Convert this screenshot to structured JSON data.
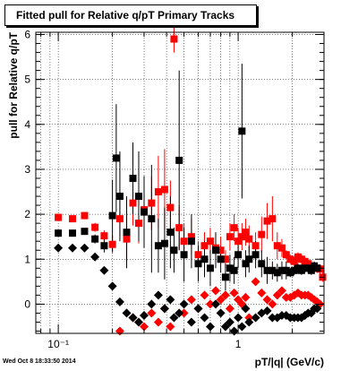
{
  "title": "Fitted pull for Relative q/pT  Primary Tracks",
  "timestamp": "Wed Oct  8 18:33:50 2014",
  "colors": {
    "series_red": "#ff0000",
    "series_black": "#000000"
  },
  "chart_data": {
    "type": "scatter",
    "title": "Fitted pull for Relative q/pT  Primary Tracks",
    "xlabel": "pT/|q| (GeV/c)",
    "ylabel": "pull for Relative q/pT",
    "xscale": "log",
    "xlim": [
      0.075,
      3.0
    ],
    "ylim": [
      -0.65,
      6.05
    ],
    "grid": true,
    "x_tick_labels": [
      {
        "value": 0.1,
        "label": "10⁻¹"
      },
      {
        "value": 1,
        "label": "1"
      }
    ],
    "y_ticks": [
      0,
      1,
      2,
      3,
      4,
      5,
      6
    ],
    "series": [
      {
        "marker": "square",
        "color": "#ff0000",
        "points": [
          {
            "x": 0.1,
            "y": 1.93,
            "err": 0.07
          },
          {
            "x": 0.12,
            "y": 1.9,
            "err": 0.07
          },
          {
            "x": 0.14,
            "y": 1.97,
            "err": 0.08
          },
          {
            "x": 0.16,
            "y": 1.71,
            "err": 0.1
          },
          {
            "x": 0.18,
            "y": 1.52,
            "err": 0.12
          },
          {
            "x": 0.2,
            "y": 1.33,
            "err": 0.2
          },
          {
            "x": 0.22,
            "y": 1.9,
            "err": 0.4
          },
          {
            "x": 0.24,
            "y": 1.45,
            "err": 0.5
          },
          {
            "x": 0.26,
            "y": 2.25,
            "err": 0.5
          },
          {
            "x": 0.28,
            "y": 1.8,
            "err": 0.45
          },
          {
            "x": 0.3,
            "y": 2.1,
            "err": 0.5
          },
          {
            "x": 0.33,
            "y": 2.25,
            "err": 0.6
          },
          {
            "x": 0.36,
            "y": 2.5,
            "err": 0.8
          },
          {
            "x": 0.39,
            "y": 2.55,
            "err": 0.9
          },
          {
            "x": 0.42,
            "y": 2.15,
            "err": 0.6
          },
          {
            "x": 0.44,
            "y": 5.9,
            "err": 0.3
          },
          {
            "x": 0.47,
            "y": 1.7,
            "err": 0.5
          },
          {
            "x": 0.5,
            "y": 1.4,
            "err": 0.4
          },
          {
            "x": 0.55,
            "y": 1.5,
            "err": 0.4
          },
          {
            "x": 0.6,
            "y": 1.1,
            "err": 0.3
          },
          {
            "x": 0.65,
            "y": 1.3,
            "err": 0.3
          },
          {
            "x": 0.7,
            "y": 1.4,
            "err": 0.3
          },
          {
            "x": 0.75,
            "y": 1.25,
            "err": 0.3
          },
          {
            "x": 0.8,
            "y": 1.2,
            "err": 0.3
          },
          {
            "x": 0.85,
            "y": 1.0,
            "err": 0.2
          },
          {
            "x": 0.9,
            "y": 1.5,
            "err": 0.3
          },
          {
            "x": 0.95,
            "y": 1.7,
            "err": 0.3
          },
          {
            "x": 1.0,
            "y": 1.4,
            "err": 0.3
          },
          {
            "x": 1.05,
            "y": 1.5,
            "err": 0.3
          },
          {
            "x": 1.1,
            "y": 1.6,
            "err": 0.3
          },
          {
            "x": 1.15,
            "y": 1.45,
            "err": 0.3
          },
          {
            "x": 1.25,
            "y": 1.3,
            "err": 0.3
          },
          {
            "x": 1.35,
            "y": 1.55,
            "err": 0.4
          },
          {
            "x": 1.45,
            "y": 1.85,
            "err": 0.4
          },
          {
            "x": 1.55,
            "y": 1.9,
            "err": 0.5
          },
          {
            "x": 1.65,
            "y": 1.3,
            "err": 0.3
          },
          {
            "x": 1.75,
            "y": 1.25,
            "err": 0.2
          },
          {
            "x": 1.85,
            "y": 1.1,
            "err": 0.1
          },
          {
            "x": 1.95,
            "y": 1.0,
            "err": 0.1
          },
          {
            "x": 2.05,
            "y": 0.95,
            "err": 0.1
          },
          {
            "x": 2.15,
            "y": 1.05,
            "err": 0.1
          },
          {
            "x": 2.25,
            "y": 1.0,
            "err": 0.1
          },
          {
            "x": 2.35,
            "y": 0.95,
            "err": 0.1
          },
          {
            "x": 2.45,
            "y": 0.9,
            "err": 0.1
          },
          {
            "x": 2.55,
            "y": 0.85,
            "err": 0.1
          },
          {
            "x": 2.65,
            "y": 0.8,
            "err": 0.1
          },
          {
            "x": 2.75,
            "y": 0.8,
            "err": 0.1
          },
          {
            "x": 2.85,
            "y": 0.78,
            "err": 0.1
          },
          {
            "x": 2.95,
            "y": 0.6,
            "err": 0.1
          }
        ]
      },
      {
        "marker": "square",
        "color": "#000000",
        "points": [
          {
            "x": 0.1,
            "y": 1.58,
            "err": 0.06
          },
          {
            "x": 0.12,
            "y": 1.58,
            "err": 0.06
          },
          {
            "x": 0.14,
            "y": 1.62,
            "err": 0.07
          },
          {
            "x": 0.16,
            "y": 1.45,
            "err": 0.1
          },
          {
            "x": 0.18,
            "y": 1.3,
            "err": 0.15
          },
          {
            "x": 0.2,
            "y": 1.97,
            "err": 0.8
          },
          {
            "x": 0.21,
            "y": 3.25,
            "err": 1.2
          },
          {
            "x": 0.22,
            "y": 2.4,
            "err": 1.0
          },
          {
            "x": 0.24,
            "y": 1.6,
            "err": 0.8
          },
          {
            "x": 0.26,
            "y": 2.8,
            "err": 0.8
          },
          {
            "x": 0.28,
            "y": 2.4,
            "err": 1.0
          },
          {
            "x": 0.3,
            "y": 2.05,
            "err": 0.8
          },
          {
            "x": 0.33,
            "y": 1.9,
            "err": 1.2
          },
          {
            "x": 0.36,
            "y": 1.3,
            "err": 0.6
          },
          {
            "x": 0.39,
            "y": 1.35,
            "err": 0.8
          },
          {
            "x": 0.42,
            "y": 1.6,
            "err": 0.8
          },
          {
            "x": 0.44,
            "y": 1.2,
            "err": 0.5
          },
          {
            "x": 0.47,
            "y": 3.2,
            "err": 2.0
          },
          {
            "x": 0.5,
            "y": 1.1,
            "err": 0.6
          },
          {
            "x": 0.55,
            "y": 1.4,
            "err": 0.6
          },
          {
            "x": 0.6,
            "y": 0.9,
            "err": 0.4
          },
          {
            "x": 0.65,
            "y": 1.0,
            "err": 0.4
          },
          {
            "x": 0.7,
            "y": 0.8,
            "err": 0.4
          },
          {
            "x": 0.75,
            "y": 1.2,
            "err": 0.4
          },
          {
            "x": 0.8,
            "y": 1.0,
            "err": 0.3
          },
          {
            "x": 0.85,
            "y": 0.6,
            "err": 0.3
          },
          {
            "x": 0.9,
            "y": 0.8,
            "err": 0.3
          },
          {
            "x": 0.95,
            "y": 0.75,
            "err": 0.3
          },
          {
            "x": 1.0,
            "y": 1.1,
            "err": 0.3
          },
          {
            "x": 1.05,
            "y": 3.85,
            "err": 1.5
          },
          {
            "x": 1.1,
            "y": 0.9,
            "err": 0.3
          },
          {
            "x": 1.15,
            "y": 1.0,
            "err": 0.3
          },
          {
            "x": 1.25,
            "y": 1.1,
            "err": 0.3
          },
          {
            "x": 1.35,
            "y": 0.9,
            "err": 0.3
          },
          {
            "x": 1.45,
            "y": 0.75,
            "err": 0.3
          },
          {
            "x": 1.55,
            "y": 0.75,
            "err": 0.2
          },
          {
            "x": 1.65,
            "y": 0.7,
            "err": 0.2
          },
          {
            "x": 1.75,
            "y": 0.75,
            "err": 0.2
          },
          {
            "x": 1.85,
            "y": 0.75,
            "err": 0.2
          },
          {
            "x": 1.95,
            "y": 0.7,
            "err": 0.1
          },
          {
            "x": 2.05,
            "y": 0.75,
            "err": 0.1
          },
          {
            "x": 2.15,
            "y": 0.8,
            "err": 0.1
          },
          {
            "x": 2.25,
            "y": 0.75,
            "err": 0.1
          },
          {
            "x": 2.35,
            "y": 0.8,
            "err": 0.1
          },
          {
            "x": 2.45,
            "y": 0.8,
            "err": 0.1
          },
          {
            "x": 2.55,
            "y": 0.75,
            "err": 0.1
          },
          {
            "x": 2.65,
            "y": 0.85,
            "err": 0.1
          },
          {
            "x": 2.75,
            "y": 0.8,
            "err": 0.1
          }
        ]
      },
      {
        "marker": "diamond",
        "color": "#ff0000",
        "points": [
          {
            "x": 0.22,
            "y": -0.6
          },
          {
            "x": 0.26,
            "y": -0.3
          },
          {
            "x": 0.3,
            "y": -0.5
          },
          {
            "x": 0.33,
            "y": -0.2
          },
          {
            "x": 0.36,
            "y": -0.4
          },
          {
            "x": 0.39,
            "y": -0.1
          },
          {
            "x": 0.42,
            "y": -0.5
          },
          {
            "x": 0.5,
            "y": -0.2
          },
          {
            "x": 0.55,
            "y": 0.1
          },
          {
            "x": 0.6,
            "y": -0.1
          },
          {
            "x": 0.65,
            "y": 0.2
          },
          {
            "x": 0.7,
            "y": 0.0
          },
          {
            "x": 0.75,
            "y": 0.3
          },
          {
            "x": 0.8,
            "y": 0.1
          },
          {
            "x": 0.85,
            "y": 0.2
          },
          {
            "x": 0.9,
            "y": -0.1
          },
          {
            "x": 0.95,
            "y": 0.25
          },
          {
            "x": 1.0,
            "y": 0.1
          },
          {
            "x": 1.05,
            "y": 0.0
          },
          {
            "x": 1.1,
            "y": 0.15
          },
          {
            "x": 1.15,
            "y": -0.3
          },
          {
            "x": 1.25,
            "y": 0.5
          },
          {
            "x": 1.35,
            "y": 0.25
          },
          {
            "x": 1.45,
            "y": 0.1
          },
          {
            "x": 1.55,
            "y": 0.0
          },
          {
            "x": 1.65,
            "y": 0.2
          },
          {
            "x": 1.75,
            "y": 0.3
          },
          {
            "x": 1.85,
            "y": 0.15
          },
          {
            "x": 1.95,
            "y": 0.15
          },
          {
            "x": 2.05,
            "y": 0.2
          },
          {
            "x": 2.15,
            "y": 0.25
          },
          {
            "x": 2.25,
            "y": 0.2
          },
          {
            "x": 2.35,
            "y": 0.2
          },
          {
            "x": 2.45,
            "y": 0.2
          },
          {
            "x": 2.55,
            "y": 0.15
          },
          {
            "x": 2.65,
            "y": 0.1
          },
          {
            "x": 2.75,
            "y": 0.05
          },
          {
            "x": 2.85,
            "y": 0.0
          }
        ]
      },
      {
        "marker": "diamond",
        "color": "#000000",
        "points": [
          {
            "x": 0.1,
            "y": 1.25
          },
          {
            "x": 0.12,
            "y": 1.25
          },
          {
            "x": 0.14,
            "y": 1.25
          },
          {
            "x": 0.16,
            "y": 1.05
          },
          {
            "x": 0.18,
            "y": 0.75
          },
          {
            "x": 0.2,
            "y": 0.4
          },
          {
            "x": 0.22,
            "y": 0.05
          },
          {
            "x": 0.24,
            "y": -0.2
          },
          {
            "x": 0.26,
            "y": -0.3
          },
          {
            "x": 0.28,
            "y": -0.4
          },
          {
            "x": 0.3,
            "y": -0.25
          },
          {
            "x": 0.33,
            "y": 0.0
          },
          {
            "x": 0.36,
            "y": 0.2
          },
          {
            "x": 0.39,
            "y": -0.1
          },
          {
            "x": 0.42,
            "y": 0.1
          },
          {
            "x": 0.44,
            "y": -0.3
          },
          {
            "x": 0.47,
            "y": -0.2
          },
          {
            "x": 0.5,
            "y": 0.0
          },
          {
            "x": 0.55,
            "y": -0.4
          },
          {
            "x": 0.6,
            "y": -0.1
          },
          {
            "x": 0.65,
            "y": -0.3
          },
          {
            "x": 0.7,
            "y": -0.5
          },
          {
            "x": 0.75,
            "y": 0.0
          },
          {
            "x": 0.8,
            "y": -0.2
          },
          {
            "x": 0.85,
            "y": -0.5
          },
          {
            "x": 0.9,
            "y": -0.4
          },
          {
            "x": 0.95,
            "y": -0.6
          },
          {
            "x": 1.0,
            "y": -0.3
          },
          {
            "x": 1.05,
            "y": -0.5
          },
          {
            "x": 1.1,
            "y": -0.1
          },
          {
            "x": 1.15,
            "y": -0.4
          },
          {
            "x": 1.25,
            "y": -0.3
          },
          {
            "x": 1.35,
            "y": -0.2
          },
          {
            "x": 1.45,
            "y": -0.15
          },
          {
            "x": 1.55,
            "y": -0.3
          },
          {
            "x": 1.65,
            "y": -0.3
          },
          {
            "x": 1.75,
            "y": -0.25
          },
          {
            "x": 1.85,
            "y": -0.25
          },
          {
            "x": 1.95,
            "y": -0.3
          },
          {
            "x": 2.05,
            "y": -0.3
          },
          {
            "x": 2.15,
            "y": -0.3
          },
          {
            "x": 2.25,
            "y": -0.3
          },
          {
            "x": 2.35,
            "y": -0.25
          },
          {
            "x": 2.45,
            "y": -0.2
          },
          {
            "x": 2.55,
            "y": -0.2
          },
          {
            "x": 2.65,
            "y": -0.1
          },
          {
            "x": 2.75,
            "y": -0.1
          }
        ]
      }
    ]
  }
}
